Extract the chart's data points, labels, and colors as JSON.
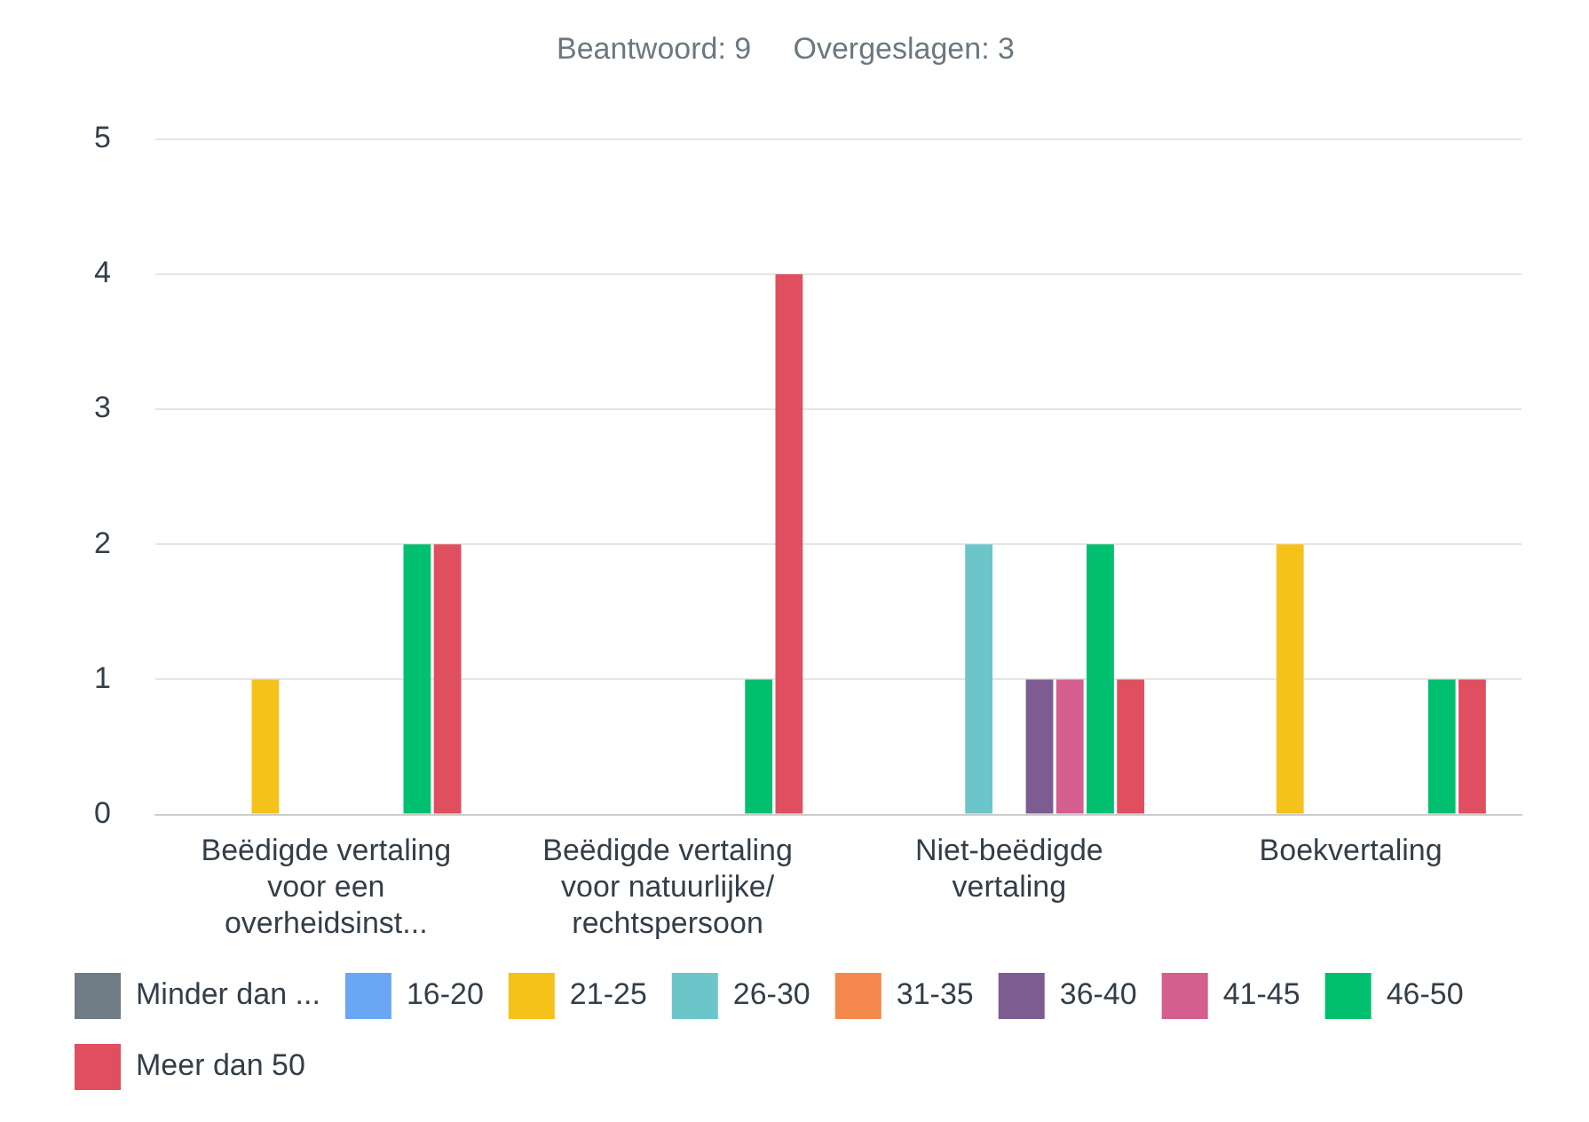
{
  "chart_data": {
    "type": "bar",
    "title": "Beantwoord: 9     Overgeslagen: 3",
    "categories": [
      "Beëdigde vertaling voor een overheidsinst...",
      "Beëdigde vertaling voor natuurlijke/ rechtspersoon",
      "Niet-beëdigde vertaling",
      "Boekvertaling"
    ],
    "series": [
      {
        "name": "Minder dan ...",
        "color": "#6f7c85",
        "values": [
          0,
          0,
          0,
          0
        ]
      },
      {
        "name": "16-20",
        "color": "#6ba6f5",
        "values": [
          0,
          0,
          0,
          0
        ]
      },
      {
        "name": "21-25",
        "color": "#f5c21b",
        "values": [
          1,
          0,
          0,
          2
        ]
      },
      {
        "name": "26-30",
        "color": "#6cc6c9",
        "values": [
          0,
          0,
          2,
          0
        ]
      },
      {
        "name": "31-35",
        "color": "#f5884d",
        "values": [
          0,
          0,
          0,
          0
        ]
      },
      {
        "name": "36-40",
        "color": "#7d5c91",
        "values": [
          0,
          0,
          1,
          0
        ]
      },
      {
        "name": "41-45",
        "color": "#d45e8e",
        "values": [
          0,
          0,
          1,
          0
        ]
      },
      {
        "name": "46-50",
        "color": "#00bf6f",
        "values": [
          2,
          1,
          2,
          1
        ]
      },
      {
        "name": "Meer dan 50",
        "color": "#e04f5f",
        "values": [
          2,
          4,
          1,
          1
        ]
      }
    ],
    "ylim": [
      0,
      5
    ],
    "yticks": [
      0,
      1,
      2,
      3,
      4,
      5
    ],
    "grid": "y",
    "legend": "bottom"
  }
}
